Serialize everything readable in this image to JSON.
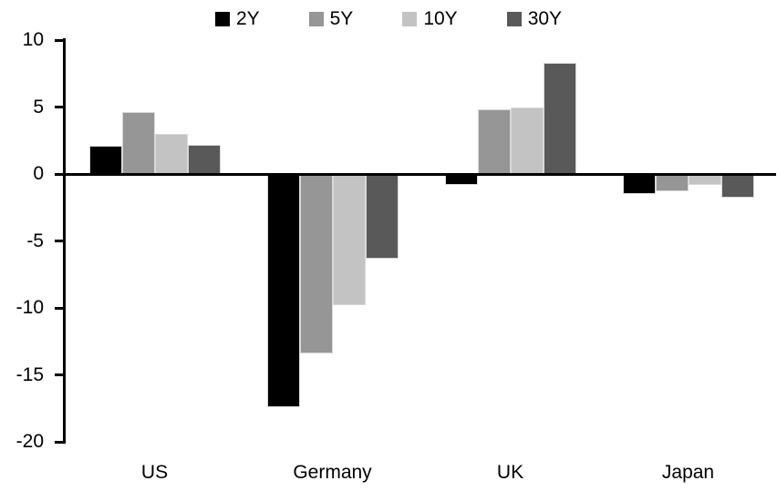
{
  "chart_data": {
    "type": "bar",
    "title": "",
    "categories": [
      "US",
      "Germany",
      "UK",
      "Japan"
    ],
    "series": [
      {
        "name": "2Y",
        "color": "#000000",
        "values": [
          2.1,
          -17.4,
          -0.8,
          -1.5
        ]
      },
      {
        "name": "5Y",
        "color": "#969696",
        "values": [
          4.6,
          -13.4,
          4.8,
          -1.3
        ]
      },
      {
        "name": "10Y",
        "color": "#c3c3c3",
        "values": [
          3.0,
          -9.8,
          5.0,
          -0.8
        ]
      },
      {
        "name": "30Y",
        "color": "#595959",
        "values": [
          2.2,
          -6.3,
          8.3,
          -1.8
        ]
      }
    ],
    "xlabel": "",
    "ylabel": "",
    "ylim": [
      -20,
      10
    ],
    "yticks": [
      10,
      5,
      0,
      -5,
      -10,
      -15,
      -20
    ],
    "grid": false,
    "legend_position": "top-center",
    "axis_color": "#000000",
    "background": "#ffffff"
  }
}
